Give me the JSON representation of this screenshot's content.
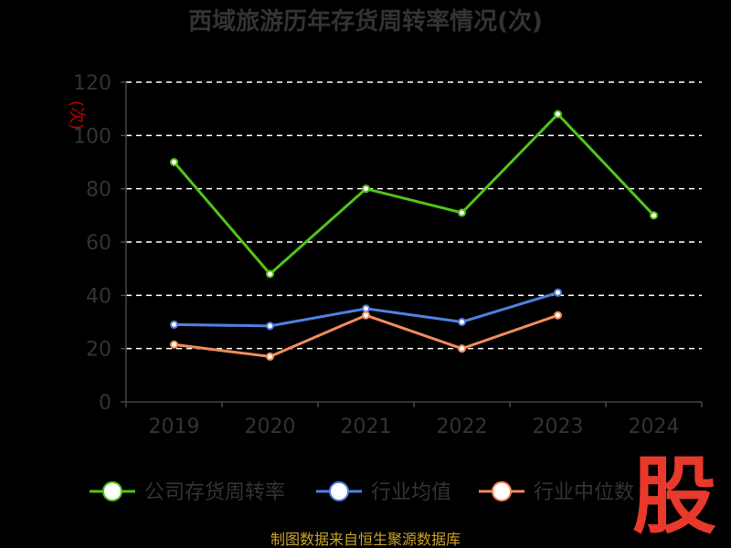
{
  "chart_data": {
    "type": "line",
    "title": "西域旅游历年存货周转率情况(次)",
    "unit_label": "(次)",
    "categories": [
      "2019",
      "2020",
      "2021",
      "2022",
      "2023",
      "2024"
    ],
    "ylim": [
      0,
      120
    ],
    "yticks": [
      0,
      20,
      40,
      60,
      80,
      100,
      120
    ],
    "grid": true,
    "legend_position": "bottom",
    "series": [
      {
        "name": "公司存货周转率",
        "color": "#52c41a",
        "values": [
          90,
          48,
          80,
          71,
          108,
          70
        ]
      },
      {
        "name": "行业均值",
        "color": "#4f81e0",
        "values": [
          29,
          28.5,
          35,
          30,
          41,
          null
        ]
      },
      {
        "name": "行业中位数",
        "color": "#f28c5b",
        "values": [
          21.5,
          17,
          32.5,
          20,
          32.5,
          null
        ]
      }
    ],
    "source": "制图数据来自恒生聚源数据库",
    "logo_text": "股"
  }
}
